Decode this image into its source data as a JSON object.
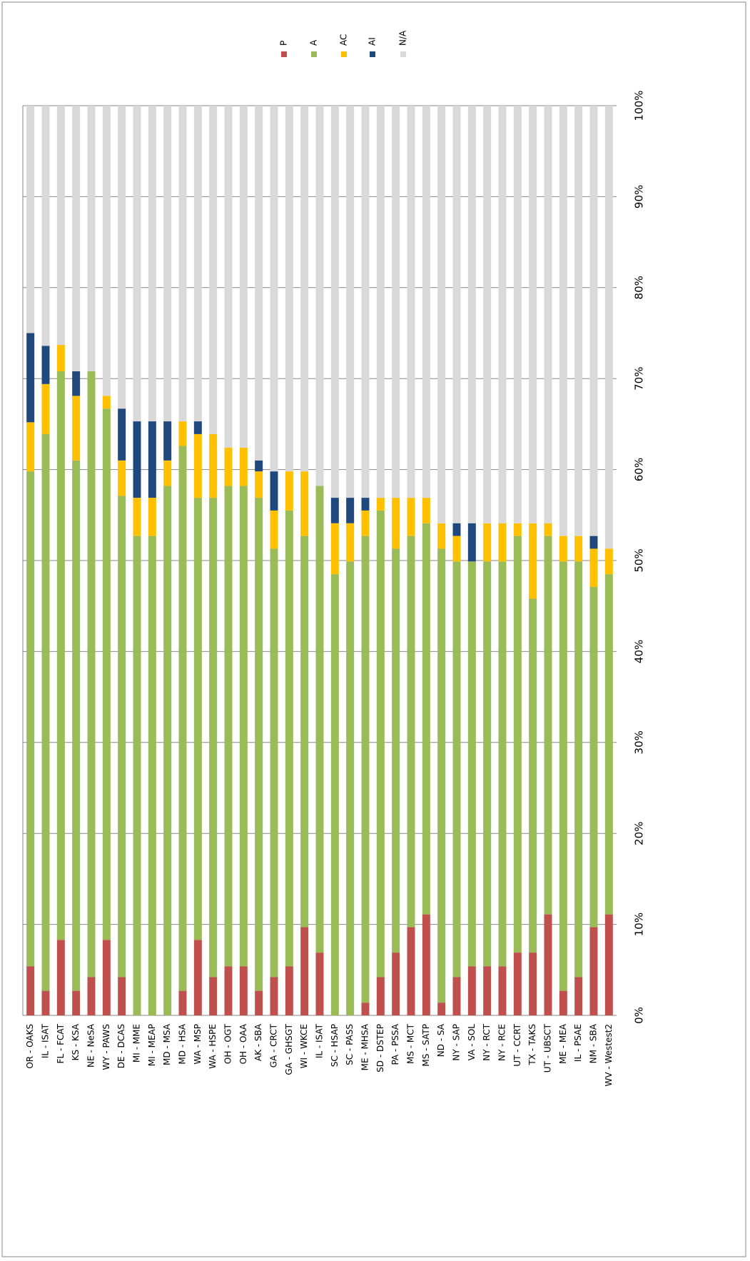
{
  "chart_data": {
    "type": "stacked_bar",
    "categories": [
      "OR - OAKS",
      "IL - ISAT",
      "FL - FCAT",
      "KS - KSA",
      "NE - NeSA",
      "WY - PAWS",
      "DE - DCAS",
      "MI - MME",
      "MI - MEAP",
      "MD - MSA",
      "MD - HSA",
      "WA - MSP",
      "WA - HSPE",
      "OH - OGT",
      "OH - OAA",
      "AK - SBA",
      "GA - CRCT",
      "GA - GHSGT",
      "WI - WKCE",
      "IL - ISAT",
      "SC - HSAP",
      "SC - PASS",
      "ME - MHSA",
      "SD - DSTEP",
      "PA - PSSA",
      "MS - MCT",
      "MS - SATP",
      "ND - SA",
      "NY - SAP",
      "VA - SOL",
      "NY - RCT",
      "NY - RCE",
      "UT - CCRT",
      "TX - TAKS",
      "UT - UBSCT",
      "ME - MEA",
      "IL - PSAE",
      "NM - SBA",
      "WV - Westest2"
    ],
    "series": [
      {
        "name": "P",
        "color": "#c0504d",
        "values": [
          5.4,
          2.7,
          8.3,
          2.7,
          4.2,
          8.3,
          4.2,
          0,
          0,
          0,
          2.7,
          8.3,
          4.2,
          5.4,
          5.4,
          2.7,
          4.2,
          5.4,
          9.7,
          6.9,
          0,
          0,
          1.4,
          4.2,
          6.9,
          9.7,
          11.1,
          1.4,
          4.2,
          5.4,
          5.4,
          5.4,
          6.9,
          6.9,
          11.1,
          2.7,
          4.2,
          9.7,
          11.1
        ]
      },
      {
        "name": "A",
        "color": "#9bbb59",
        "values": [
          54.4,
          61.2,
          62.5,
          58.3,
          66.6,
          58.4,
          52.9,
          52.7,
          52.7,
          58.2,
          59.9,
          48.6,
          52.7,
          52.8,
          52.8,
          54.2,
          47.1,
          50.1,
          43.0,
          51.3,
          48.5,
          49.9,
          51.3,
          51.3,
          44.4,
          43.0,
          43.0,
          49.9,
          45.7,
          44.5,
          44.5,
          44.5,
          45.8,
          38.9,
          41.6,
          47.2,
          45.7,
          37.4,
          37.4
        ]
      },
      {
        "name": "AC",
        "color": "#ffc000",
        "values": [
          5.4,
          5.5,
          2.9,
          7.1,
          0,
          1.4,
          3.9,
          4.2,
          4.2,
          2.8,
          2.7,
          7.0,
          7.0,
          4.2,
          4.2,
          2.9,
          4.2,
          4.3,
          7.1,
          0,
          5.6,
          4.2,
          2.8,
          1.4,
          5.6,
          4.2,
          2.8,
          2.8,
          2.8,
          0,
          4.2,
          4.2,
          1.4,
          8.3,
          1.4,
          2.8,
          2.8,
          4.2,
          2.8
        ]
      },
      {
        "name": "AI",
        "color": "#1f497d",
        "values": [
          9.8,
          4.2,
          0,
          2.7,
          0,
          0,
          5.7,
          8.4,
          8.4,
          4.3,
          0,
          1.4,
          0,
          0,
          0,
          1.2,
          4.3,
          0,
          0,
          0,
          2.8,
          2.8,
          1.4,
          0,
          0,
          0,
          0,
          0,
          1.4,
          4.2,
          0,
          0,
          0,
          0,
          0,
          0,
          0,
          1.4,
          0
        ]
      },
      {
        "name": "N/A",
        "color": "#d9d9d9",
        "values": [
          25.0,
          26.4,
          26.3,
          29.2,
          29.2,
          31.9,
          33.3,
          34.7,
          34.7,
          34.7,
          34.7,
          34.7,
          36.1,
          37.6,
          37.6,
          39.0,
          40.2,
          40.2,
          40.2,
          41.8,
          43.1,
          43.1,
          43.1,
          43.1,
          43.1,
          43.1,
          43.1,
          45.9,
          45.9,
          45.9,
          45.9,
          45.9,
          45.9,
          45.9,
          45.9,
          47.3,
          47.3,
          47.3,
          48.7
        ]
      }
    ],
    "ylim": [
      0,
      100
    ],
    "yticks": [
      {
        "value": 0,
        "label": "0%"
      },
      {
        "value": 10,
        "label": "10%"
      },
      {
        "value": 20,
        "label": "20%"
      },
      {
        "value": 30,
        "label": "30%"
      },
      {
        "value": 40,
        "label": "40%"
      },
      {
        "value": 50,
        "label": "50%"
      },
      {
        "value": 60,
        "label": "60%"
      },
      {
        "value": 70,
        "label": "70%"
      },
      {
        "value": 80,
        "label": "80%"
      },
      {
        "value": 90,
        "label": "90%"
      },
      {
        "value": 100,
        "label": "100%"
      }
    ],
    "grid": true
  }
}
